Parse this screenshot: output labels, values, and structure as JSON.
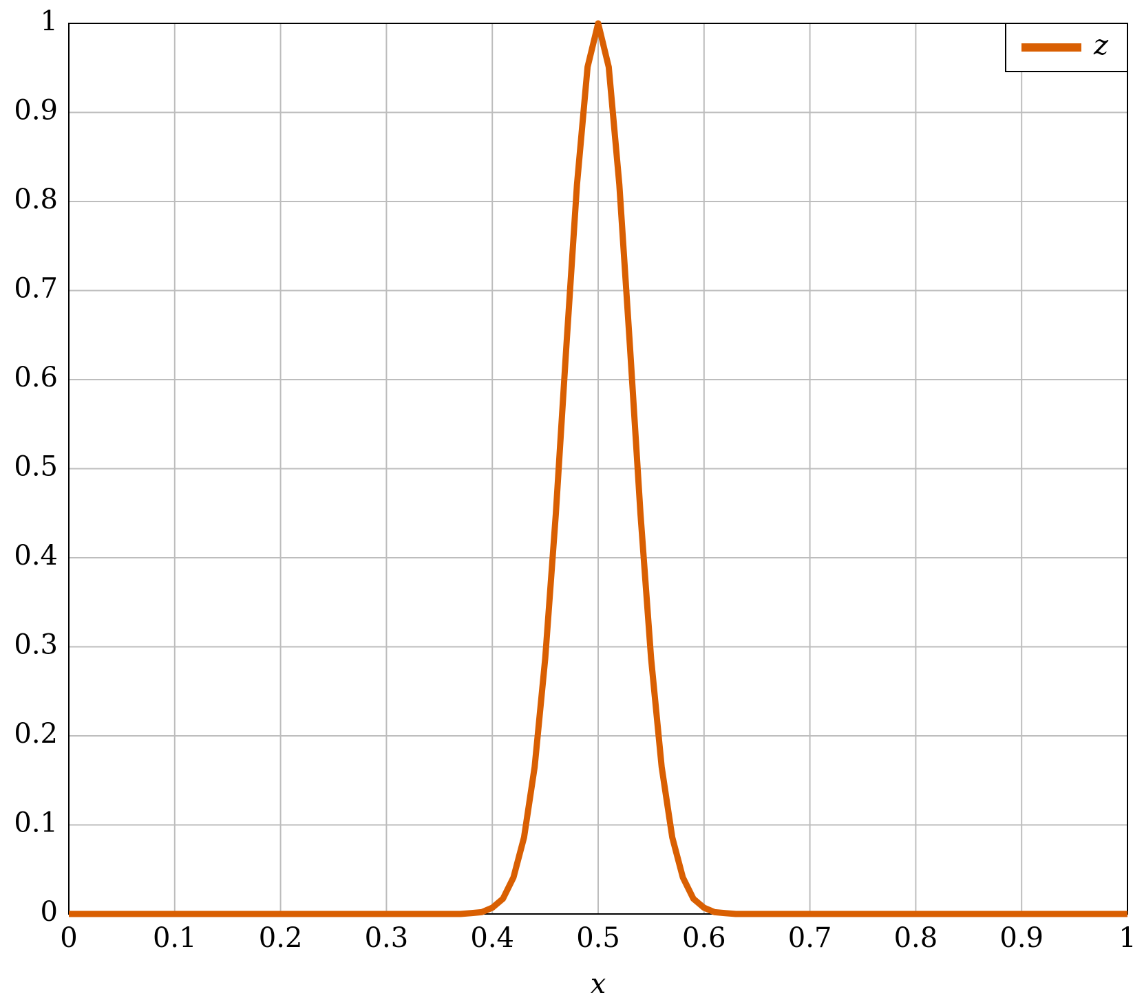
{
  "chart_data": {
    "type": "line",
    "x_label": "x",
    "x": [
      0,
      0.1,
      0.2,
      0.3,
      0.35,
      0.36,
      0.37,
      0.38,
      0.39,
      0.4,
      0.41,
      0.42,
      0.43,
      0.44,
      0.45,
      0.46,
      0.47,
      0.48,
      0.49,
      0.5,
      0.51,
      0.52,
      0.53,
      0.54,
      0.55,
      0.56,
      0.57,
      0.58,
      0.59,
      0.6,
      0.61,
      0.62,
      0.63,
      0.64,
      0.65,
      0.7,
      0.8,
      0.9,
      1
    ],
    "series": [
      {
        "name": "z",
        "color": "#d95f02",
        "values": [
          0,
          0,
          0,
          0,
          0,
          0,
          0,
          0.001,
          0.002,
          0.007,
          0.017,
          0.041,
          0.086,
          0.165,
          0.287,
          0.449,
          0.638,
          0.819,
          0.951,
          1,
          0.951,
          0.819,
          0.638,
          0.449,
          0.287,
          0.165,
          0.086,
          0.041,
          0.017,
          0.007,
          0.002,
          0.001,
          0,
          0,
          0,
          0,
          0,
          0,
          0
        ]
      }
    ],
    "xlim": [
      0,
      1
    ],
    "ylim": [
      0,
      1
    ],
    "xticks": [
      0,
      0.1,
      0.2,
      0.3,
      0.4,
      0.5,
      0.6,
      0.7,
      0.8,
      0.9,
      1
    ],
    "yticks": [
      0,
      0.1,
      0.2,
      0.3,
      0.4,
      0.5,
      0.6,
      0.7,
      0.8,
      0.9,
      1
    ],
    "grid": true,
    "legend": "top-right"
  }
}
